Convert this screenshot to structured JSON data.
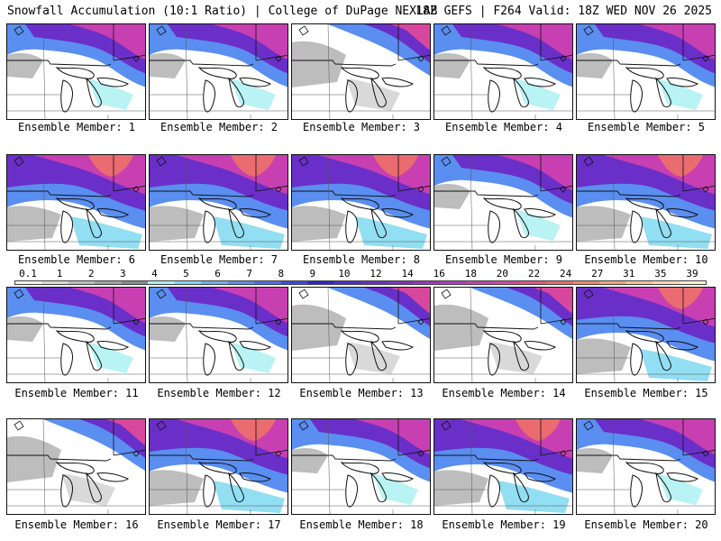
{
  "header": {
    "left_title": "Snowfall Accumulation (10:1 Ratio) | College of DuPage NEXLAB",
    "right_title": "18Z GEFS | F264 Valid: 18Z WED NOV 26 2025"
  },
  "colorbar": {
    "labels": [
      "0.1",
      "1",
      "2",
      "3",
      "4",
      "5",
      "6",
      "7",
      "8",
      "9",
      "10",
      "12",
      "14",
      "16",
      "18",
      "20",
      "22",
      "24",
      "27",
      "31",
      "35",
      "39"
    ],
    "colors": [
      "#f0f0f0",
      "#d9d9d9",
      "#bdbdbd",
      "#a3a3a3",
      "#8c8c8c",
      "#a8f0f0",
      "#7fd8f0",
      "#6fb0f0",
      "#5a8ef0",
      "#4e6ef0",
      "#3e48ea",
      "#2d23d8",
      "#4f2ad0",
      "#6a2fc8",
      "#8430c4",
      "#9d35c4",
      "#b43ac0",
      "#c83fb2",
      "#d8479e",
      "#e25686",
      "#ea6b70",
      "#f08a6a",
      "#f3a57d",
      "#f6c195",
      "#f9dab2",
      "#fcecd2"
    ]
  },
  "panels": [
    {
      "label": "Ensemble Member: 1",
      "snow": "north"
    },
    {
      "label": "Ensemble Member: 2",
      "snow": "north"
    },
    {
      "label": "Ensemble Member: 3",
      "snow": "north-light"
    },
    {
      "label": "Ensemble Member: 4",
      "snow": "north"
    },
    {
      "label": "Ensemble Member: 5",
      "snow": "north"
    },
    {
      "label": "Ensemble Member: 6",
      "snow": "heavy"
    },
    {
      "label": "Ensemble Member: 7",
      "snow": "heavy"
    },
    {
      "label": "Ensemble Member: 8",
      "snow": "heavy"
    },
    {
      "label": "Ensemble Member: 9",
      "snow": "north"
    },
    {
      "label": "Ensemble Member: 10",
      "snow": "heavy"
    },
    {
      "label": "Ensemble Member: 11",
      "snow": "north"
    },
    {
      "label": "Ensemble Member: 12",
      "snow": "north"
    },
    {
      "label": "Ensemble Member: 13",
      "snow": "north-light"
    },
    {
      "label": "Ensemble Member: 14",
      "snow": "north-light"
    },
    {
      "label": "Ensemble Member: 15",
      "snow": "heavy"
    },
    {
      "label": "Ensemble Member: 16",
      "snow": "north-light"
    },
    {
      "label": "Ensemble Member: 17",
      "snow": "heavy"
    },
    {
      "label": "Ensemble Member: 18",
      "snow": "north"
    },
    {
      "label": "Ensemble Member: 19",
      "snow": "heavy"
    },
    {
      "label": "Ensemble Member: 20",
      "snow": "north"
    }
  ]
}
